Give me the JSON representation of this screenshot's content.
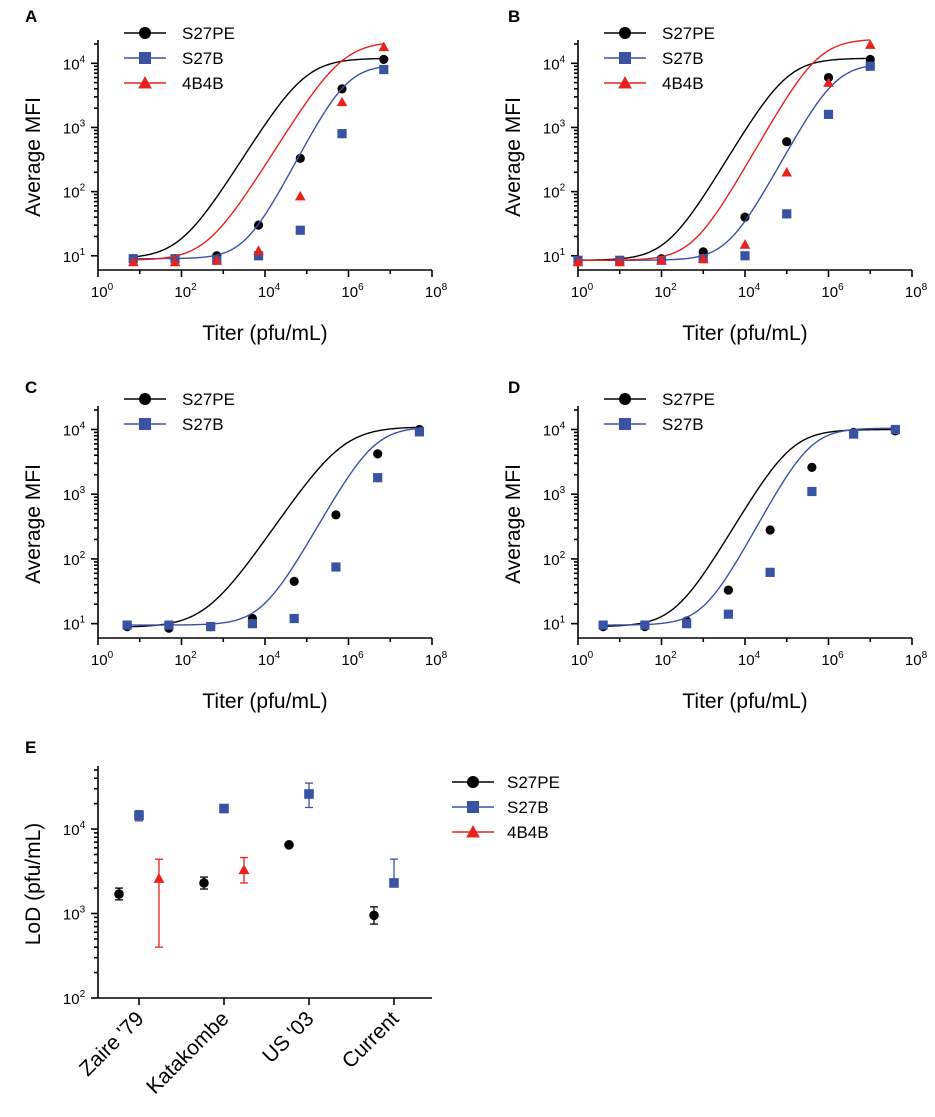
{
  "colors": {
    "S27PE": "#000000",
    "S27B": "#3a52a4",
    "4B4B": "#e8231d"
  },
  "chart_data": [
    {
      "panel_label": "A",
      "type": "line-scatter",
      "xlabel": "Titer (pfu/mL)",
      "ylabel": "Average MFI",
      "xscale": "log10",
      "yscale": "log10",
      "xlim": [
        1,
        100000000
      ],
      "ylim": [
        6,
        20000
      ],
      "x_ticks": [
        "10",
        "10",
        "10",
        "10",
        "10"
      ],
      "x_tick_exponents": [
        "0",
        "2",
        "4",
        "6",
        "8"
      ],
      "y_ticks": [
        "10",
        "10",
        "10",
        "10"
      ],
      "y_tick_exponents": [
        "1",
        "2",
        "3",
        "4"
      ],
      "legend_position": "top-left",
      "series": [
        {
          "name": "S27PE",
          "marker": "circle",
          "color": "#000000",
          "x": [
            7,
            70,
            700,
            7000,
            70000,
            700000,
            7000000
          ],
          "y": [
            9,
            9,
            10,
            30,
            330,
            4000,
            11500
          ],
          "fit": {
            "bottom": 9,
            "top": 12000,
            "log_ec50": 4.95,
            "hill": 1.05
          }
        },
        {
          "name": "S27B",
          "marker": "square",
          "color": "#3a52a4",
          "x": [
            7,
            70,
            700,
            7000,
            70000,
            700000,
            7000000
          ],
          "y": [
            9,
            9,
            8.5,
            10,
            25,
            800,
            8000
          ],
          "fit": {
            "bottom": 9,
            "top": 9500,
            "log_ec50": 5.95,
            "hill": 1.25
          }
        },
        {
          "name": "4B4B",
          "marker": "triangle",
          "color": "#e8231d",
          "x": [
            7,
            70,
            700,
            7000,
            70000,
            700000,
            7000000
          ],
          "y": [
            8,
            8,
            8.5,
            12,
            85,
            2500,
            18000
          ],
          "fit": {
            "bottom": 8.5,
            "top": 22000,
            "log_ec50": 5.85,
            "hill": 1.05
          }
        }
      ]
    },
    {
      "panel_label": "B",
      "type": "line-scatter",
      "xlabel": "Titer (pfu/mL)",
      "ylabel": "Average MFI",
      "xscale": "log10",
      "yscale": "log10",
      "xlim": [
        1,
        100000000
      ],
      "ylim": [
        6,
        20000
      ],
      "x_ticks": [
        "10",
        "10",
        "10",
        "10",
        "10"
      ],
      "x_tick_exponents": [
        "0",
        "2",
        "4",
        "6",
        "8"
      ],
      "y_ticks": [
        "10",
        "10",
        "10",
        "10"
      ],
      "y_tick_exponents": [
        "1",
        "2",
        "3",
        "4"
      ],
      "legend_position": "top-left",
      "series": [
        {
          "name": "S27PE",
          "marker": "circle",
          "color": "#000000",
          "x": [
            1,
            10,
            100,
            1000,
            10000,
            100000,
            1000000,
            10000000
          ],
          "y": [
            8.5,
            8.5,
            9,
            11.5,
            40,
            600,
            6000,
            11500
          ],
          "fit": {
            "bottom": 8.5,
            "top": 12000,
            "log_ec50": 5.0,
            "hill": 1.1
          }
        },
        {
          "name": "S27B",
          "marker": "square",
          "color": "#3a52a4",
          "x": [
            1,
            10,
            100,
            1000,
            10000,
            100000,
            1000000,
            10000000
          ],
          "y": [
            8.5,
            8.5,
            8.5,
            9,
            10,
            45,
            1600,
            9000
          ],
          "fit": {
            "bottom": 8.5,
            "top": 10000,
            "log_ec50": 6.15,
            "hill": 1.2
          }
        },
        {
          "name": "4B4B",
          "marker": "triangle",
          "color": "#e8231d",
          "x": [
            1,
            10,
            100,
            1000,
            10000,
            100000,
            1000000,
            10000000
          ],
          "y": [
            8,
            8,
            8.5,
            9,
            15,
            200,
            5000,
            19500
          ],
          "fit": {
            "bottom": 8.5,
            "top": 24000,
            "log_ec50": 5.75,
            "hill": 1.15
          }
        }
      ]
    },
    {
      "panel_label": "C",
      "type": "line-scatter",
      "xlabel": "Titer (pfu/mL)",
      "ylabel": "Average MFI",
      "xscale": "log10",
      "yscale": "log10",
      "xlim": [
        1,
        100000000
      ],
      "ylim": [
        6,
        20000
      ],
      "x_ticks": [
        "10",
        "10",
        "10",
        "10",
        "10"
      ],
      "x_tick_exponents": [
        "0",
        "2",
        "4",
        "6",
        "8"
      ],
      "y_ticks": [
        "10",
        "10",
        "10",
        "10"
      ],
      "y_tick_exponents": [
        "1",
        "2",
        "3",
        "4"
      ],
      "legend_position": "top-left",
      "series": [
        {
          "name": "S27PE",
          "marker": "circle",
          "color": "#000000",
          "x": [
            5,
            50,
            500,
            5000,
            50000,
            500000,
            5000000,
            50000000
          ],
          "y": [
            9,
            8.5,
            9,
            12,
            45,
            480,
            4200,
            10000
          ],
          "fit": {
            "bottom": 8.8,
            "top": 11000,
            "log_ec50": 5.85,
            "hill": 0.95
          }
        },
        {
          "name": "S27B",
          "marker": "square",
          "color": "#3a52a4",
          "x": [
            5,
            50,
            500,
            5000,
            50000,
            500000,
            5000000,
            50000000
          ],
          "y": [
            9.5,
            9.5,
            9,
            10,
            12,
            75,
            1800,
            9200
          ],
          "fit": {
            "bottom": 9.5,
            "top": 11000,
            "log_ec50": 6.6,
            "hill": 1.15
          }
        }
      ]
    },
    {
      "panel_label": "D",
      "type": "line-scatter",
      "xlabel": "Titer (pfu/mL)",
      "ylabel": "Average MFI",
      "xscale": "log10",
      "yscale": "log10",
      "xlim": [
        1,
        100000000
      ],
      "ylim": [
        6,
        20000
      ],
      "x_ticks": [
        "10",
        "10",
        "10",
        "10",
        "10"
      ],
      "x_tick_exponents": [
        "0",
        "2",
        "4",
        "6",
        "8"
      ],
      "y_ticks": [
        "10",
        "10",
        "10",
        "10"
      ],
      "y_tick_exponents": [
        "1",
        "2",
        "3",
        "4"
      ],
      "legend_position": "top-left",
      "series": [
        {
          "name": "S27PE",
          "marker": "circle",
          "color": "#000000",
          "x": [
            4,
            40,
            400,
            4000,
            40000,
            400000,
            4000000,
            40000000
          ],
          "y": [
            9,
            9,
            11,
            33,
            280,
            2600,
            9000,
            9500
          ],
          "fit": {
            "bottom": 9,
            "top": 10000,
            "log_ec50": 5.1,
            "hill": 1.1
          }
        },
        {
          "name": "S27B",
          "marker": "square",
          "color": "#3a52a4",
          "x": [
            4,
            40,
            400,
            4000,
            40000,
            400000,
            4000000,
            40000000
          ],
          "y": [
            9.5,
            9.5,
            10,
            14,
            62,
            1100,
            8500,
            10000
          ],
          "fit": {
            "bottom": 9.5,
            "top": 10500,
            "log_ec50": 5.55,
            "hill": 1.2
          }
        }
      ]
    },
    {
      "panel_label": "E",
      "type": "scatter-errorbar",
      "ylabel": "LoD (pfu/mL)",
      "yscale": "log10",
      "ylim": [
        100,
        50000
      ],
      "categories": [
        "Zaire '79",
        "Katakombe",
        "US '03",
        "Current"
      ],
      "y_ticks": [
        "10",
        "10",
        "10"
      ],
      "y_tick_exponents": [
        "2",
        "3",
        "4"
      ],
      "legend_position": "right",
      "series": [
        {
          "name": "S27PE",
          "marker": "circle",
          "color": "#000000",
          "values": [
            1700,
            2300,
            6500,
            950
          ],
          "err_low": [
            1450,
            1950,
            6300,
            750
          ],
          "err_high": [
            2000,
            2700,
            6700,
            1200
          ]
        },
        {
          "name": "S27B",
          "marker": "square",
          "color": "#3a52a4",
          "values": [
            14500,
            17500,
            26000,
            2300
          ],
          "err_low": [
            12500,
            16500,
            18000,
            2300
          ],
          "err_high": [
            16500,
            18500,
            35000,
            4400
          ]
        },
        {
          "name": "4B4B",
          "marker": "triangle",
          "color": "#e8231d",
          "values": [
            2600,
            3300,
            null,
            null
          ],
          "err_low": [
            400,
            2300,
            null,
            null
          ],
          "err_high": [
            4400,
            4600,
            null,
            null
          ]
        }
      ]
    }
  ]
}
